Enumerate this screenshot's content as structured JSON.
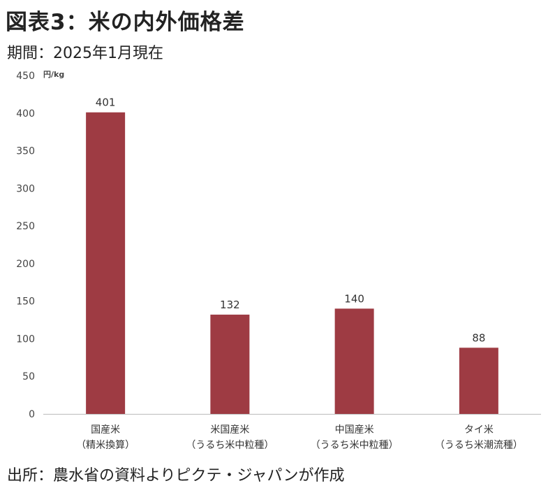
{
  "title": "図表3：米の内外価格差",
  "subtitle": "期間：2025年1月現在",
  "source": "出所：農水省の資料よりピクテ・ジャパンが作成",
  "colors": {
    "bar": "#9e3b43",
    "axis": "#bbbbbb"
  },
  "chart_data": {
    "type": "bar",
    "unit": "円/kg",
    "categories": [
      [
        "国産米",
        "（精米換算）"
      ],
      [
        "米国産米",
        "（うるち米中粒種）"
      ],
      [
        "中国産米",
        "（うるち米中粒種）"
      ],
      [
        "タイ米",
        "（うるち米潮流種）"
      ]
    ],
    "values": [
      401,
      132,
      140,
      88
    ],
    "data_labels": [
      "401",
      "132",
      "140",
      "88"
    ],
    "ylim": [
      0,
      450
    ],
    "yticks": [
      0,
      50,
      100,
      150,
      200,
      250,
      300,
      350,
      400,
      450
    ],
    "grid": false,
    "legend": "none"
  }
}
